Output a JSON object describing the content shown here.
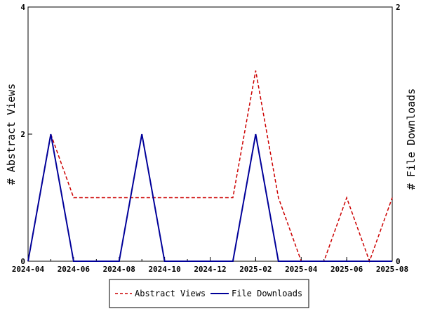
{
  "chart_data": {
    "type": "line",
    "x_ticks": [
      "2024-04",
      "2024-06",
      "2024-08",
      "2024-10",
      "2024-12",
      "2025-02",
      "2025-04",
      "2025-06",
      "2025-08"
    ],
    "x_range": [
      "2024-04",
      "2025-08"
    ],
    "y_left": {
      "label": "# Abstract Views",
      "ticks": [
        "0",
        "2",
        "4"
      ],
      "range": [
        0,
        4
      ]
    },
    "y_right": {
      "label": "# File Downloads",
      "ticks": [
        "0",
        "2"
      ],
      "range": [
        0,
        2
      ]
    },
    "series": [
      {
        "name": "Abstract Views",
        "axis": "left",
        "color": "#cc0000",
        "style": "dashed",
        "points": [
          [
            "2024-04",
            0
          ],
          [
            "2024-05",
            2
          ],
          [
            "2024-06",
            1
          ],
          [
            "2024-07",
            1
          ],
          [
            "2024-08",
            1
          ],
          [
            "2024-09",
            1
          ],
          [
            "2024-10",
            1
          ],
          [
            "2024-11",
            1
          ],
          [
            "2024-12",
            1
          ],
          [
            "2025-01",
            1
          ],
          [
            "2025-02",
            3
          ],
          [
            "2025-03",
            1
          ],
          [
            "2025-04",
            0
          ],
          [
            "2025-05",
            0
          ],
          [
            "2025-06",
            1
          ],
          [
            "2025-07",
            0
          ],
          [
            "2025-08",
            1
          ]
        ]
      },
      {
        "name": "File Downloads",
        "axis": "right",
        "color": "#000099",
        "style": "solid",
        "points": [
          [
            "2024-04",
            0
          ],
          [
            "2024-05",
            1
          ],
          [
            "2024-06",
            0
          ],
          [
            "2024-07",
            0
          ],
          [
            "2024-08",
            0
          ],
          [
            "2024-09",
            1
          ],
          [
            "2024-10",
            0
          ],
          [
            "2024-11",
            0
          ],
          [
            "2024-12",
            0
          ],
          [
            "2025-01",
            0
          ],
          [
            "2025-02",
            1
          ],
          [
            "2025-03",
            0
          ],
          [
            "2025-04",
            0
          ],
          [
            "2025-05",
            0
          ],
          [
            "2025-06",
            0
          ],
          [
            "2025-07",
            0
          ],
          [
            "2025-08",
            0
          ]
        ]
      }
    ],
    "legend": {
      "placement": "bottom",
      "entries": [
        "Abstract Views",
        "File Downloads"
      ]
    },
    "grid": false
  }
}
